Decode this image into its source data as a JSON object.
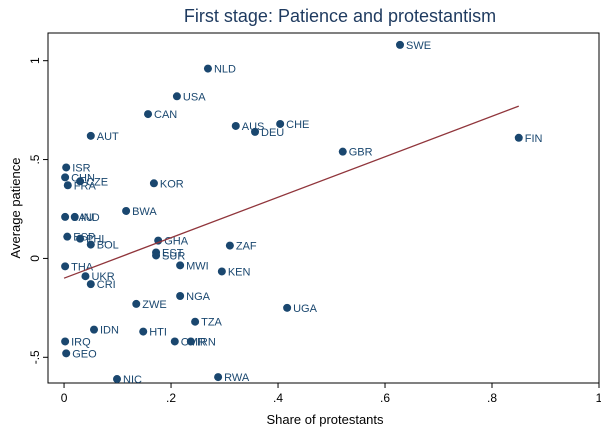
{
  "chart_data": {
    "type": "scatter",
    "title": "First stage: Patience and protestantism",
    "x_label": "Share of protestants",
    "y_label": "Average patience",
    "labels": [
      "SWE",
      "NLD",
      "USA",
      "CAN",
      "AUT",
      "AUS",
      "CHE",
      "DEU",
      "FIN",
      "GBR",
      "ISR",
      "CHN",
      "CZE",
      "FRA",
      "KOR",
      "BWA",
      "SAU",
      "IND",
      "ESP",
      "PHL",
      "BOL",
      "GHA",
      "EST",
      "SUR",
      "ZAF",
      "MWI",
      "KEN",
      "THA",
      "UKR",
      "CRI",
      "NGA",
      "UGA",
      "ZWE",
      "TZA",
      "HTI",
      "IDN",
      "CMR",
      "IRN",
      "GEO",
      "NIC",
      "RWA",
      "IRQ"
    ],
    "x": [
      0.628,
      0.269,
      0.211,
      0.157,
      0.05,
      0.321,
      0.404,
      0.357,
      0.85,
      0.521,
      0.004,
      0.002,
      0.03,
      0.007,
      0.168,
      0.116,
      0.002,
      0.02,
      0.006,
      0.03,
      0.05,
      0.176,
      0.172,
      0.172,
      0.31,
      0.217,
      0.295,
      0.002,
      0.04,
      0.05,
      0.217,
      0.417,
      0.135,
      0.245,
      0.148,
      0.056,
      0.207,
      0.237,
      0.004,
      0.099,
      0.288,
      0.002
    ],
    "values": [
      1.08,
      0.96,
      0.82,
      0.73,
      0.62,
      0.67,
      0.68,
      0.64,
      0.61,
      0.54,
      0.46,
      0.41,
      0.39,
      0.37,
      0.38,
      0.24,
      0.21,
      0.21,
      0.11,
      0.1,
      0.07,
      0.09,
      0.03,
      0.015,
      0.065,
      -0.035,
      -0.066,
      -0.04,
      -0.09,
      -0.13,
      -0.19,
      -0.25,
      -0.23,
      -0.32,
      -0.37,
      -0.36,
      -0.42,
      -0.42,
      -0.48,
      -0.61,
      -0.6,
      -0.42
    ],
    "color": "#1a476f",
    "fit_line": {
      "x": [
        0,
        0.85
      ],
      "y": [
        -0.1,
        0.77
      ],
      "color": "#90353b"
    },
    "xlim": [
      -0.03,
      1.0
    ],
    "ylim": [
      -0.63,
      1.14
    ],
    "xticks": [
      0,
      {
        "value": 0.2,
        "label": ".2"
      },
      {
        "value": 0.4,
        "label": ".4"
      },
      {
        "value": 0.6,
        "label": ".6"
      },
      {
        "value": 0.8,
        "label": ".8"
      },
      1
    ],
    "yticks": [
      {
        "value": -0.5,
        "label": "-.5"
      },
      0,
      {
        "value": 0.5,
        "label": ".5"
      },
      1
    ]
  }
}
